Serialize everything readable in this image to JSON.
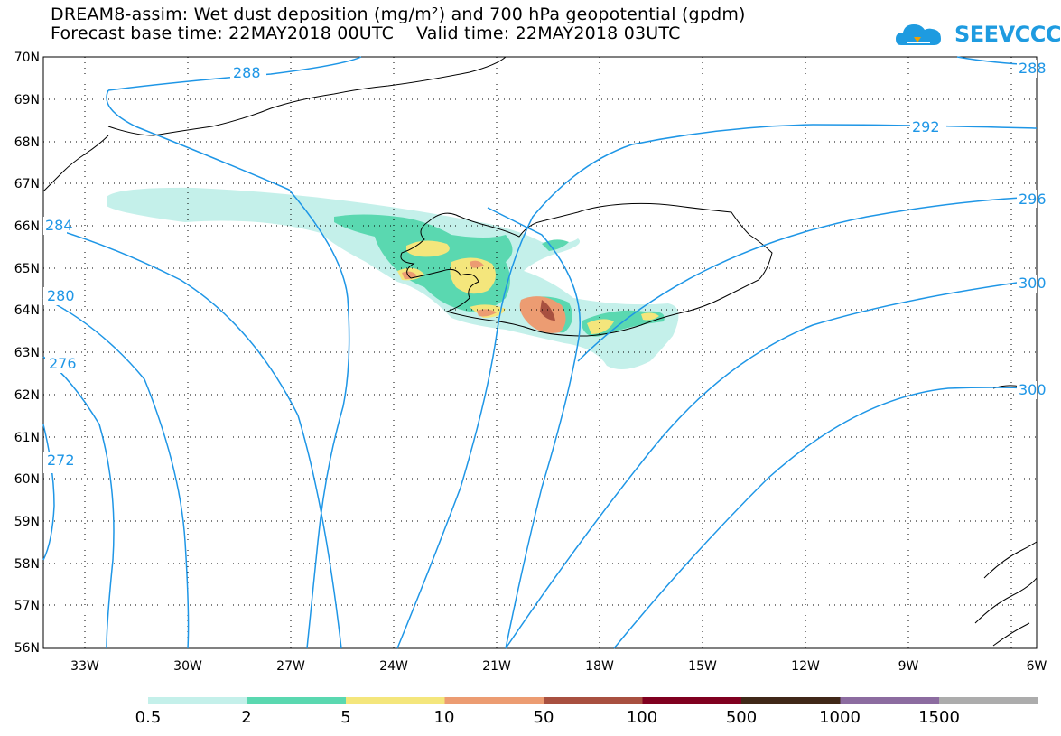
{
  "title": {
    "line1": "DREAM8-assim: Wet dust deposition (mg/m²) and 700 hPa geopotential (gpdm)",
    "line2": "Forecast base time: 22MAY2018 00UTC    Valid time: 22MAY2018 03UTC"
  },
  "logo": {
    "text": "SEEVCCC",
    "icon": "cloud-icon"
  },
  "map": {
    "lat_labels": [
      "70N",
      "69N",
      "68N",
      "67N",
      "66N",
      "65N",
      "64N",
      "63N",
      "62N",
      "61N",
      "60N",
      "59N",
      "58N",
      "57N",
      "56N"
    ],
    "lon_labels": [
      "33W",
      "30W",
      "27W",
      "24W",
      "21W",
      "18W",
      "15W",
      "12W",
      "9W",
      "6W"
    ],
    "contour_labels": [
      "288",
      "292",
      "284",
      "280",
      "276",
      "272",
      "288",
      "296",
      "300",
      "300"
    ],
    "colors": {
      "contour": "#1e96e6",
      "coast": "#000000"
    }
  },
  "legend": {
    "labels": [
      "0.5",
      "2",
      "5",
      "10",
      "50",
      "100",
      "500",
      "1000",
      "1500"
    ],
    "colors": [
      "#c4f0ea",
      "#5ad8b0",
      "#f4e67c",
      "#ec9c72",
      "#a85040",
      "#800020",
      "#402818",
      "#8c6ca0",
      "#acacac"
    ]
  }
}
